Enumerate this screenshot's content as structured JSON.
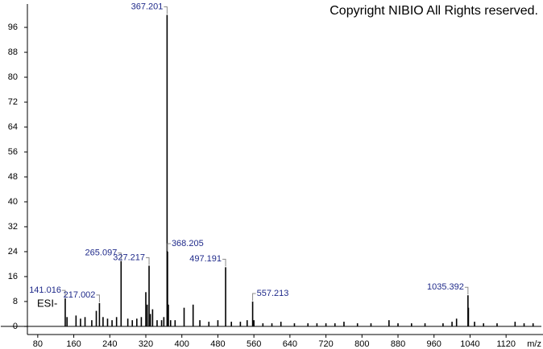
{
  "chart_data": {
    "type": "bar",
    "copyright": "Copyright NIBIO All Rights reserved.",
    "ion_mode": "ESI-",
    "x_label": "m/z",
    "color": "#000000",
    "xlim": [
      57,
      1202
    ],
    "ylim": [
      -2.6,
      103.5
    ],
    "xticks": [
      80,
      160,
      240,
      320,
      400,
      480,
      560,
      640,
      720,
      800,
      880,
      960,
      1040,
      1120
    ],
    "yticks": [
      0,
      8,
      16,
      24,
      32,
      40,
      48,
      56,
      64,
      72,
      80,
      88,
      96
    ],
    "x": [
      141.016,
      145,
      165,
      175,
      185,
      200,
      210,
      217.002,
      225,
      235,
      245,
      255,
      265.097,
      280,
      290,
      300,
      310,
      320,
      323,
      327.217,
      330,
      335,
      345,
      355,
      360,
      367.201,
      368.205,
      370,
      375,
      385,
      405,
      425,
      440,
      460,
      480,
      497.191,
      510,
      530,
      545,
      557.213,
      560,
      580,
      600,
      620,
      650,
      680,
      700,
      720,
      740,
      760,
      790,
      820,
      860,
      880,
      910,
      940,
      980,
      1000,
      1010,
      1035.392,
      1036.4,
      1050,
      1070,
      1100,
      1140,
      1160,
      1180
    ],
    "values": [
      9,
      3,
      3.5,
      2.5,
      3,
      2,
      5,
      7.5,
      3,
      2.5,
      2,
      3,
      21,
      2.5,
      2,
      2.5,
      3,
      11,
      7,
      19.5,
      4,
      5.5,
      2,
      2,
      3,
      100,
      24,
      7,
      2,
      2,
      6,
      7,
      2,
      1.5,
      2,
      19,
      1.5,
      1.5,
      2,
      8,
      2,
      1,
      1,
      1.5,
      1,
      1,
      1,
      1,
      1,
      1.5,
      1,
      1,
      2,
      1,
      1,
      1,
      1,
      1.5,
      2.5,
      10,
      6,
      1.5,
      1,
      1,
      1.5,
      1,
      1
    ],
    "annotations": [
      {
        "x": 141.016,
        "y": 9
      },
      {
        "x": 217.002,
        "y": 7.5
      },
      {
        "x": 265.097,
        "y": 21
      },
      {
        "x": 327.217,
        "y": 19.5
      },
      {
        "x": 367.201,
        "y": 100
      },
      {
        "x": 368.205,
        "y": 24
      },
      {
        "x": 497.191,
        "y": 19
      },
      {
        "x": 557.213,
        "y": 8
      },
      {
        "x": 1035.392,
        "y": 10
      }
    ]
  }
}
